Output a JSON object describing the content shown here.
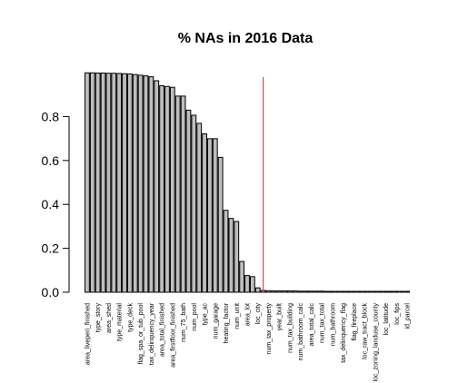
{
  "chart_data": {
    "type": "bar",
    "title": "% NAs in 2016 Data",
    "xlabel": "",
    "ylabel": "",
    "ylim": [
      0,
      1
    ],
    "yticks": [
      0.0,
      0.2,
      0.4,
      0.6,
      0.8
    ],
    "ytick_labels": [
      "0.0",
      "0.2",
      "0.4",
      "0.6",
      "0.8"
    ],
    "bar_color": "#bebebe",
    "refline_color": "#e8403e",
    "refline_x_index": 33.5,
    "refline_top": 0.98,
    "grid": false,
    "legend": "none",
    "categories": [
      "area_liveperi_finished",
      "",
      "type_story",
      "",
      "area_shed",
      "",
      "type_material",
      "",
      "type_deck",
      "",
      "flag_spa_or_tub_pool",
      "",
      "tax_delinquency_year",
      "",
      "area_total_finished",
      "",
      "area_firstfloor_finished",
      "",
      "num_75_bath",
      "",
      "num_pool",
      "",
      "type_ac",
      "",
      "num_garage",
      "",
      "heating_factor",
      "",
      "num_unit",
      "",
      "area_lot",
      "",
      "loc_city",
      "",
      "num_tax_property",
      "",
      "year_built",
      "",
      "num_tax_building",
      "",
      "num_bathroom_calc",
      "",
      "area_total_calc",
      "",
      "num_tax_total",
      "",
      "num_bathroom",
      "",
      "tax_delinquency_flag",
      "",
      "flag_fireplace",
      "",
      "loc_raw_tract_block",
      "",
      "loc_zoning_landuse_county",
      "",
      "loc_latitude",
      "",
      "loc_fips",
      "",
      "id_parcel"
    ],
    "values": [
      0.999,
      0.999,
      0.998,
      0.998,
      0.997,
      0.997,
      0.996,
      0.995,
      0.994,
      0.991,
      0.988,
      0.985,
      0.981,
      0.963,
      0.94,
      0.937,
      0.933,
      0.893,
      0.893,
      0.829,
      0.806,
      0.769,
      0.721,
      0.699,
      0.699,
      0.614,
      0.373,
      0.336,
      0.322,
      0.14,
      0.076,
      0.071,
      0.02,
      0.008,
      0.007,
      0.006,
      0.006,
      0.006,
      0.006,
      0.006,
      0.005,
      0.005,
      0.005,
      0.005,
      0.005,
      0.004,
      0.004,
      0.004,
      0.004,
      0.004,
      0.004,
      0.004,
      0.004,
      0.004,
      0.004,
      0.004,
      0.004,
      0.004,
      0.004,
      0.004,
      0.004
    ]
  }
}
